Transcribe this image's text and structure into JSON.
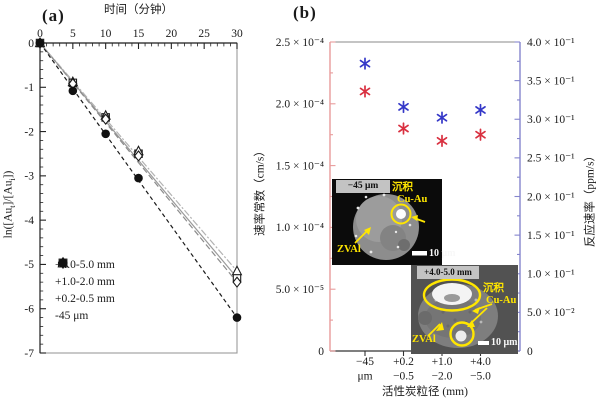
{
  "figure": {
    "panel_a_tag": "(a)",
    "panel_b_tag": "(b)"
  },
  "panel_a": {
    "top_axis_label": "时间（分钟）",
    "y_axis_label": {
      "prefix": "ln([Au",
      "sub1": "t",
      "mid": "]/[Au",
      "sub2": "i",
      "suffix": "])"
    },
    "x_tick_labels": [
      "0",
      "5",
      "10",
      "15",
      "20",
      "25",
      "30"
    ],
    "y_tick_labels": [
      "0",
      "-1",
      "-2",
      "-3",
      "-4",
      "-5",
      "-6",
      "-7"
    ],
    "legend_items": [
      {
        "marker": "open-square",
        "label": "+4.0-5.0 mm"
      },
      {
        "marker": "open-triangle",
        "label": "+1.0-2.0 mm"
      },
      {
        "marker": "open-diamond",
        "label": "+0.2-0.5 mm"
      },
      {
        "marker": "filled-circle",
        "label": "-45 μm"
      }
    ]
  },
  "panel_b": {
    "left_axis_label": "速率常数（cm/s）",
    "right_axis_label": "反应速率（ppm/s）",
    "x_axis_label": "活性炭粒径 (mm)",
    "left_tick_labels": [
      "2.5 × 10⁻⁴",
      "2.0 × 10⁻⁴",
      "1.5 × 10⁻⁴",
      "1.0 × 10⁻⁴",
      "5.0 × 10⁻⁵",
      "0"
    ],
    "right_tick_labels": [
      "4.0 × 10⁻¹",
      "3.5 × 10⁻¹",
      "3.0 × 10⁻¹",
      "2.5 × 10⁻¹",
      "2.0 × 10⁻¹",
      "1.5 × 10⁻¹",
      "1.0 × 10⁻¹",
      "5.0 × 10⁻²",
      "0"
    ],
    "x_tick_labels_line1": [
      "−45",
      "+0.2",
      "+1.0",
      "+4.0"
    ],
    "x_tick_labels_line2": [
      "μm",
      "−0.5",
      "−2.0",
      "−5.0"
    ],
    "colors": {
      "rate_constant": "#d93040",
      "reaction_rate": "#3538c8",
      "left_axis": "#e89b9b",
      "right_axis": "#8585cd"
    },
    "inset_fine": {
      "title": "−45 μm",
      "deposit_label": "沉积",
      "alloy_label": "Cu-Au",
      "zval_label": "ZVAl",
      "scale_label": "10 μm"
    },
    "inset_coarse": {
      "title": "+4.0-5.0 mm",
      "deposit_label": "沉积",
      "alloy_label": "Cu-Au",
      "zval_label": "ZVAl",
      "scale_label": "10 μm"
    }
  },
  "chart_data": [
    {
      "type": "scatter",
      "panel": "a",
      "xlabel": "时间（分钟）",
      "ylabel": "ln([Au_t]/[Au_i])",
      "xlim": [
        0,
        30
      ],
      "ylim": [
        -7,
        0
      ],
      "grid": false,
      "legend_position": "lower-left",
      "x": [
        0,
        5,
        10,
        15,
        30
      ],
      "series": [
        {
          "name": "+4.0-5.0 mm",
          "marker": "open-square",
          "line": "solid-gray",
          "values": [
            0,
            -0.9,
            -1.68,
            -2.5,
            -5.3
          ]
        },
        {
          "name": "+1.0-2.0 mm",
          "marker": "open-triangle",
          "line": "dashdot-gray",
          "values": [
            0,
            -0.88,
            -1.64,
            -2.44,
            -5.15
          ]
        },
        {
          "name": "+0.2-0.5 mm",
          "marker": "open-diamond",
          "line": "dash-gray",
          "values": [
            0,
            -0.92,
            -1.72,
            -2.55,
            -5.4
          ]
        },
        {
          "name": "-45 μm",
          "marker": "filled-circle",
          "line": "dash-black",
          "values": [
            0,
            -1.08,
            -2.05,
            -3.05,
            -6.2
          ]
        }
      ]
    },
    {
      "type": "scatter",
      "panel": "b",
      "xlabel": "活性炭粒径 (mm)",
      "categories": [
        "−45 μm",
        "+0.2−0.5 mm",
        "+1.0−2.0 mm",
        "+4.0−5.0 mm"
      ],
      "left_ylabel": "速率常数 (cm/s)",
      "left_ylim": [
        0,
        0.00025
      ],
      "right_ylabel": "反应速率 (ppm/s)",
      "right_ylim": [
        0,
        0.4
      ],
      "series": [
        {
          "name": "速率常数 (cm/s)",
          "axis": "left",
          "marker": "asterisk",
          "color": "#d93040",
          "values": [
            0.00021,
            0.00018,
            0.00017,
            0.000175
          ]
        },
        {
          "name": "反应速率 (ppm/s)",
          "axis": "right",
          "marker": "asterisk",
          "color": "#3538c8",
          "values": [
            0.372,
            0.316,
            0.302,
            0.312
          ]
        }
      ]
    }
  ]
}
